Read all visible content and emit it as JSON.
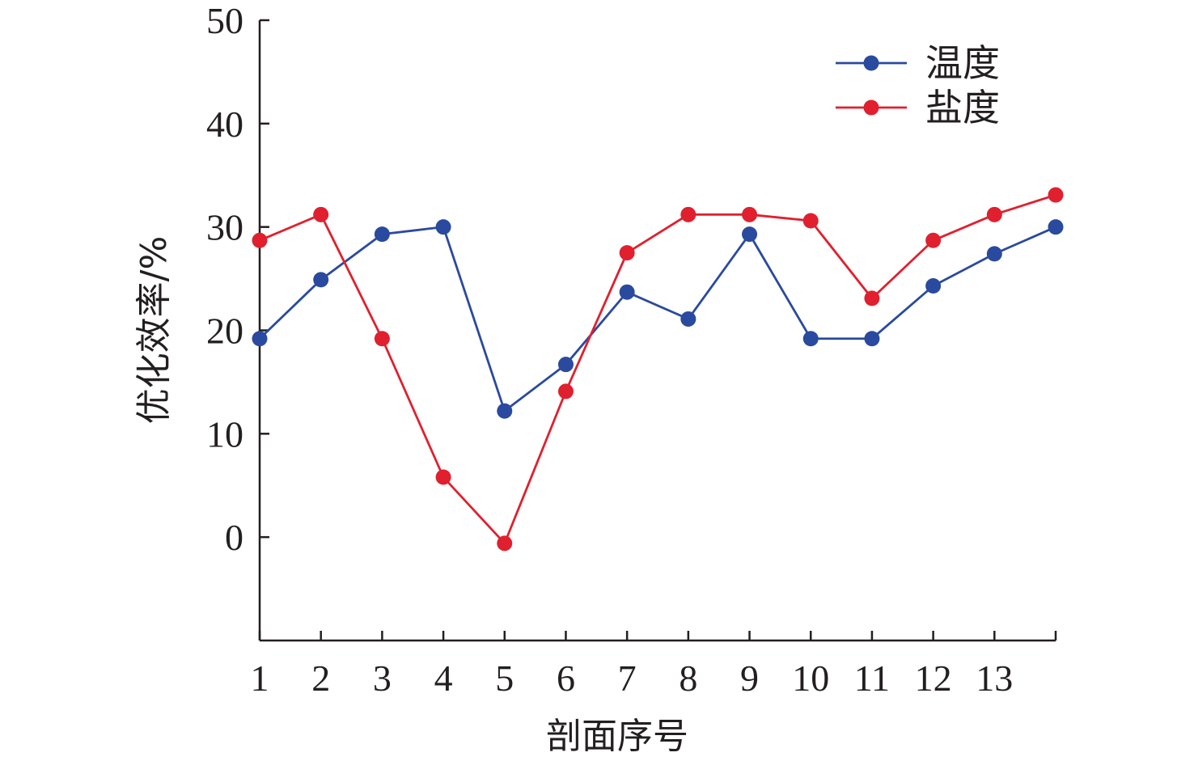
{
  "chart_data": {
    "type": "line",
    "xlabel": "剖面序号",
    "ylabel": "优化效率/%",
    "ylim": [
      -10,
      50
    ],
    "yticks": [
      0,
      10,
      20,
      30,
      40,
      50
    ],
    "x": [
      1,
      2,
      3,
      4,
      5,
      6,
      7,
      8,
      9,
      10,
      11,
      12,
      13,
      14
    ],
    "xticks": [
      1,
      2,
      3,
      4,
      5,
      6,
      7,
      8,
      9,
      10,
      11,
      12,
      13
    ],
    "xlim": [
      1,
      14
    ],
    "legend_position": "top-right",
    "grid": false,
    "series": [
      {
        "name": "温度",
        "color": "#2a4a9f",
        "values": [
          19.2,
          24.9,
          29.3,
          30.0,
          12.2,
          16.7,
          23.7,
          21.1,
          29.3,
          19.2,
          19.2,
          24.3,
          27.4,
          30.0
        ]
      },
      {
        "name": "盐度",
        "color": "#e0202e",
        "values": [
          28.7,
          31.2,
          19.2,
          5.8,
          -0.6,
          14.1,
          27.5,
          31.2,
          31.2,
          30.6,
          23.1,
          28.7,
          31.2,
          33.1
        ]
      }
    ]
  }
}
